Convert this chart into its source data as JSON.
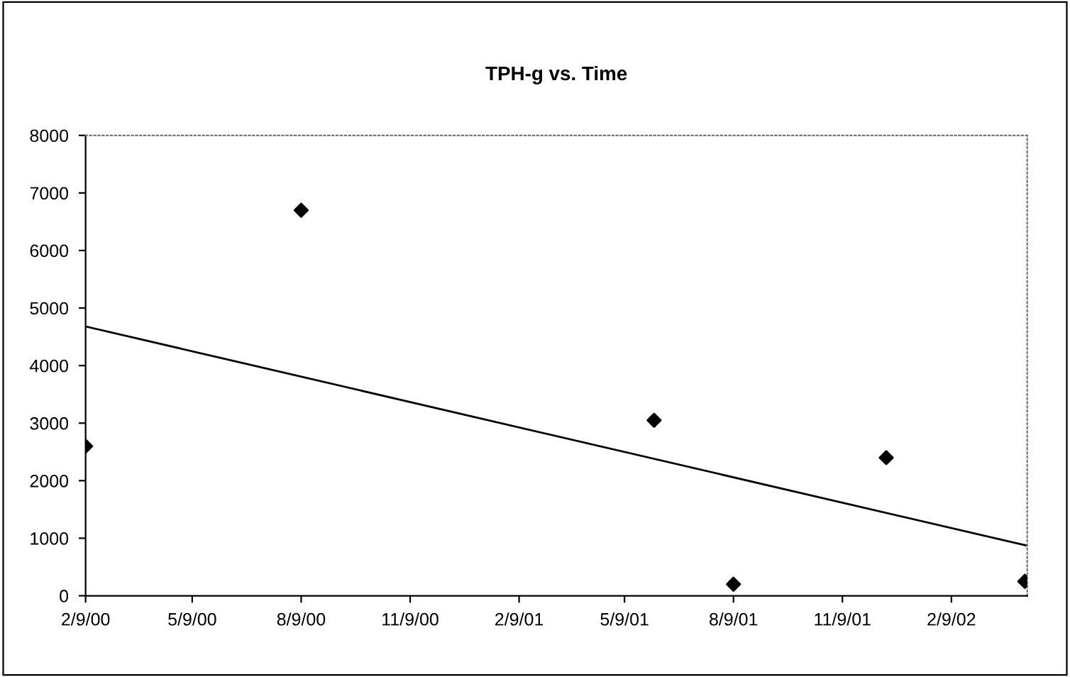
{
  "chart_data": {
    "type": "scatter",
    "title": "TPH-g vs. Time",
    "series": [
      {
        "marker": "diamond",
        "color": "#000000",
        "x": [
          "2000-02-09",
          "2000-08-09",
          "2001-06-03",
          "2001-08-09",
          "2001-12-16",
          "2002-04-12"
        ],
        "values": [
          2600,
          6700,
          3050,
          200,
          2400,
          250
        ]
      },
      {
        "type": "line",
        "marker": "none",
        "color": "#000000",
        "x": [
          "2000-02-09",
          "2002-04-14"
        ],
        "values": [
          4680,
          870
        ]
      }
    ],
    "xlim": [
      "2000-02-09",
      "2002-04-14"
    ],
    "xticks": [
      {
        "value": "2000-02-09",
        "label": "2/9/00"
      },
      {
        "value": "2000-05-09",
        "label": "5/9/00"
      },
      {
        "value": "2000-08-09",
        "label": "8/9/00"
      },
      {
        "value": "2000-11-09",
        "label": "11/9/00"
      },
      {
        "value": "2001-02-09",
        "label": "2/9/01"
      },
      {
        "value": "2001-05-09",
        "label": "5/9/01"
      },
      {
        "value": "2001-08-09",
        "label": "8/9/01"
      },
      {
        "value": "2001-11-09",
        "label": "11/9/01"
      },
      {
        "value": "2002-02-09",
        "label": "2/9/02"
      }
    ],
    "ylim": [
      0,
      8000
    ],
    "yticks": [
      0,
      1000,
      2000,
      3000,
      4000,
      5000,
      6000,
      7000,
      8000
    ],
    "grid": false
  }
}
